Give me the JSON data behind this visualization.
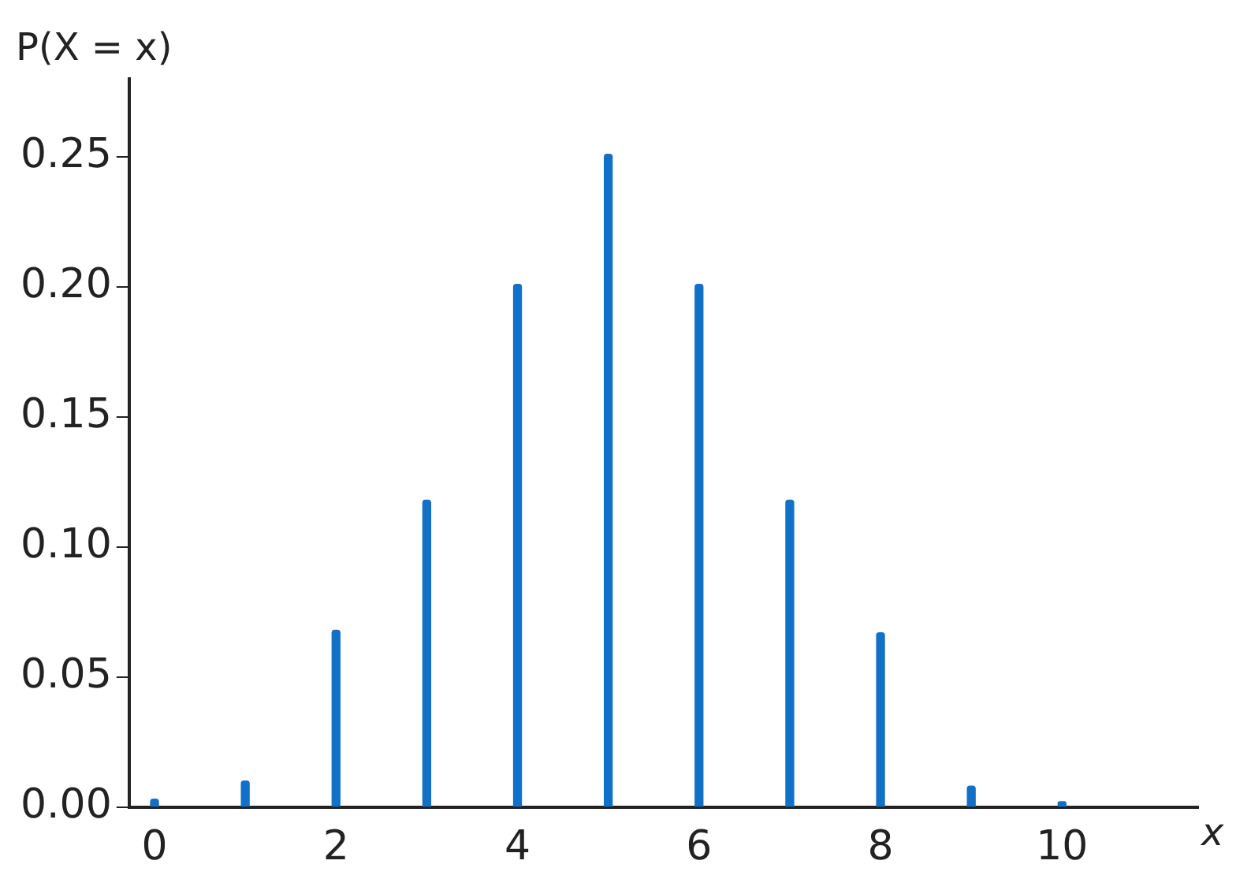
{
  "chart_data": {
    "type": "bar",
    "xlabel": "x",
    "ylabel": "P(X = x)",
    "x": [
      0,
      1,
      2,
      3,
      4,
      5,
      6,
      7,
      8,
      9,
      10
    ],
    "values": [
      0.003,
      0.01,
      0.068,
      0.118,
      0.201,
      0.251,
      0.201,
      0.118,
      0.067,
      0.008,
      0.002
    ],
    "color": "#1170c8",
    "xlim": [
      -0.28,
      11.5
    ],
    "xticks": [
      0,
      2,
      4,
      6,
      8,
      10
    ],
    "ylim": [
      0,
      0.28
    ],
    "yticks": [
      {
        "value": 0,
        "label": "0.00"
      },
      {
        "value": 0.05,
        "label": "0.05"
      },
      {
        "value": 0.1,
        "label": "0.10"
      },
      {
        "value": 0.15,
        "label": "0.15"
      },
      {
        "value": 0.2,
        "label": "0.20"
      },
      {
        "value": 0.25,
        "label": "0.25"
      }
    ],
    "grid": false,
    "legend": false
  }
}
